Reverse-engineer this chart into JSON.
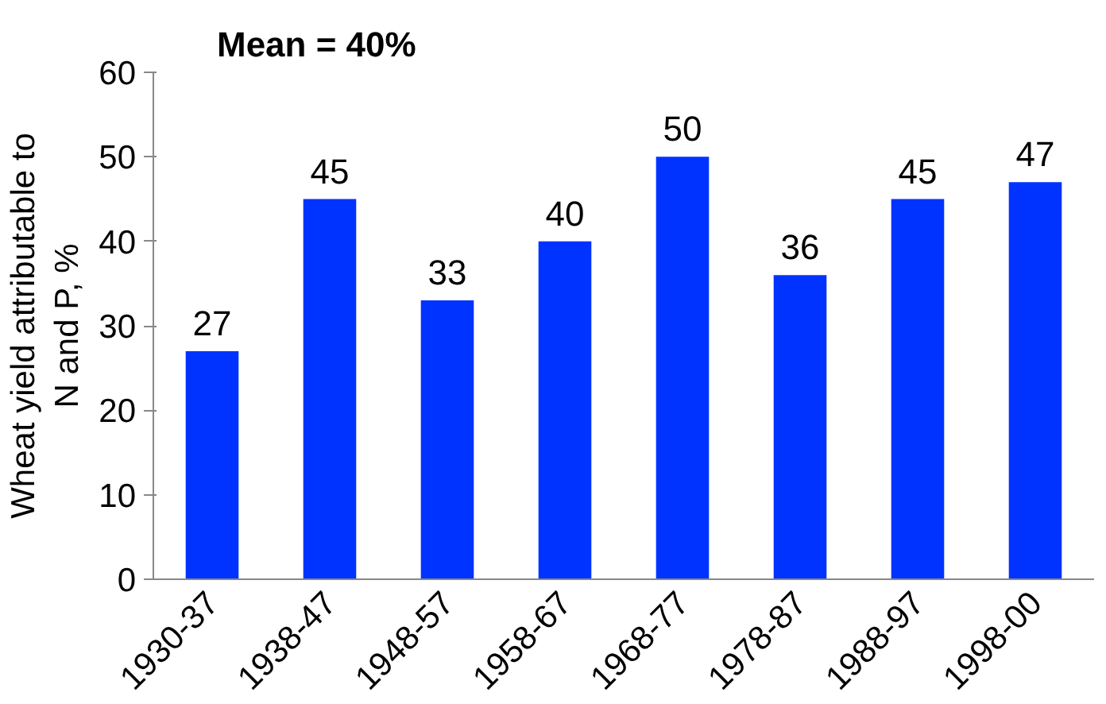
{
  "chart_data": {
    "type": "bar",
    "title": "Mean = 40%",
    "ylabel": "Wheat yield attributable to\nN and P, %",
    "categories": [
      "1930-37",
      "1938-47",
      "1948-57",
      "1958-67",
      "1968-77",
      "1978-87",
      "1988-97",
      "1998-00"
    ],
    "values": [
      27,
      45,
      33,
      40,
      50,
      36,
      45,
      47
    ],
    "color": "#0033ff",
    "ylim": [
      0,
      60
    ],
    "yticks": [
      0,
      10,
      20,
      30,
      40,
      50,
      60
    ],
    "grid": false,
    "data_labels": true
  }
}
